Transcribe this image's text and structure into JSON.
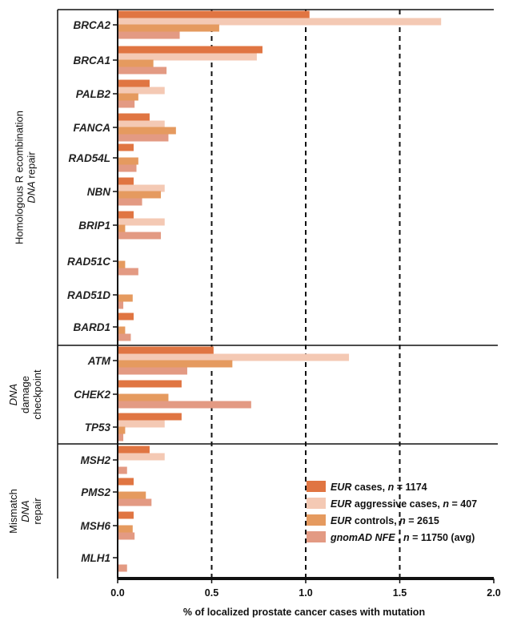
{
  "chart_data": {
    "type": "bar",
    "orientation": "horizontal",
    "xlabel": "% of  localized prostate cancer cases with mutation",
    "xlim": [
      0,
      2.0
    ],
    "xticks": [
      "0.0",
      "0.5",
      "1.0",
      "1.5",
      "2.0"
    ],
    "reference_lines": [
      0.5,
      1.0,
      1.5
    ],
    "legend_position": "bottom-right",
    "categories": [
      "BRCA2",
      "BRCA1",
      "PALB2",
      "FANCA",
      "RAD54L",
      "NBN",
      "BRIP1",
      "RAD51C",
      "RAD51D",
      "BARD1",
      "ATM",
      "CHEK2",
      "TP53",
      "MSH2",
      "PMS2",
      "MSH6",
      "MLH1"
    ],
    "groups": [
      {
        "label_lines": [
          "Homologous R ecombination",
          "DNA repair"
        ],
        "italic_word": "DNA",
        "categories": [
          "BRCA2",
          "BRCA1",
          "PALB2",
          "FANCA",
          "RAD54L",
          "NBN",
          "BRIP1",
          "RAD51C",
          "RAD51D",
          "BARD1"
        ]
      },
      {
        "label_lines": [
          "DNA",
          "damage",
          "checkpoint"
        ],
        "italic_word": "DNA",
        "categories": [
          "ATM",
          "CHEK2",
          "TP53"
        ]
      },
      {
        "label_lines": [
          "Mismatch",
          "DNA",
          "repair"
        ],
        "italic_word": "DNA",
        "categories": [
          "MSH2",
          "PMS2",
          "MSH6",
          "MLH1"
        ]
      }
    ],
    "series": [
      {
        "name": "EUR cases, n = 1174",
        "legend_italic": "EUR",
        "legend_rest": " cases, ",
        "legend_n": "n",
        "legend_tail": " = 1174",
        "color": "#e07542",
        "values": [
          1.02,
          0.77,
          0.17,
          0.17,
          0.085,
          0.085,
          0.085,
          0.0,
          0.0,
          0.085,
          0.51,
          0.34,
          0.34,
          0.17,
          0.085,
          0.085,
          0.0
        ]
      },
      {
        "name": "EUR aggressive cases, n = 407",
        "legend_italic": "EUR",
        "legend_rest": " aggressive cases, ",
        "legend_n": "n",
        "legend_tail": " = 407",
        "color": "#f4c9b4",
        "values": [
          1.72,
          0.74,
          0.25,
          0.25,
          0.0,
          0.25,
          0.25,
          0.0,
          0.0,
          0.0,
          1.23,
          0.0,
          0.25,
          0.25,
          0.0,
          0.0,
          0.0
        ]
      },
      {
        "name": "EUR controls, n = 2615",
        "legend_italic": "EUR",
        "legend_rest": " controls, ",
        "legend_n": "n",
        "legend_tail": " = 2615",
        "color": "#e59a5f",
        "values": [
          0.54,
          0.19,
          0.11,
          0.31,
          0.11,
          0.23,
          0.04,
          0.04,
          0.08,
          0.04,
          0.61,
          0.27,
          0.04,
          0.0,
          0.15,
          0.08,
          0.0
        ]
      },
      {
        "name": "gnomAD NFE , n = 11750 (avg)",
        "legend_italic": "gnomAD NFE",
        "legend_rest": " , ",
        "legend_n": "n",
        "legend_tail": " = 11750 (avg)",
        "color": "#e39a83",
        "values": [
          0.33,
          0.26,
          0.09,
          0.27,
          0.1,
          0.13,
          0.23,
          0.11,
          0.03,
          0.07,
          0.37,
          0.71,
          0.03,
          0.05,
          0.18,
          0.09,
          0.05
        ]
      }
    ]
  }
}
